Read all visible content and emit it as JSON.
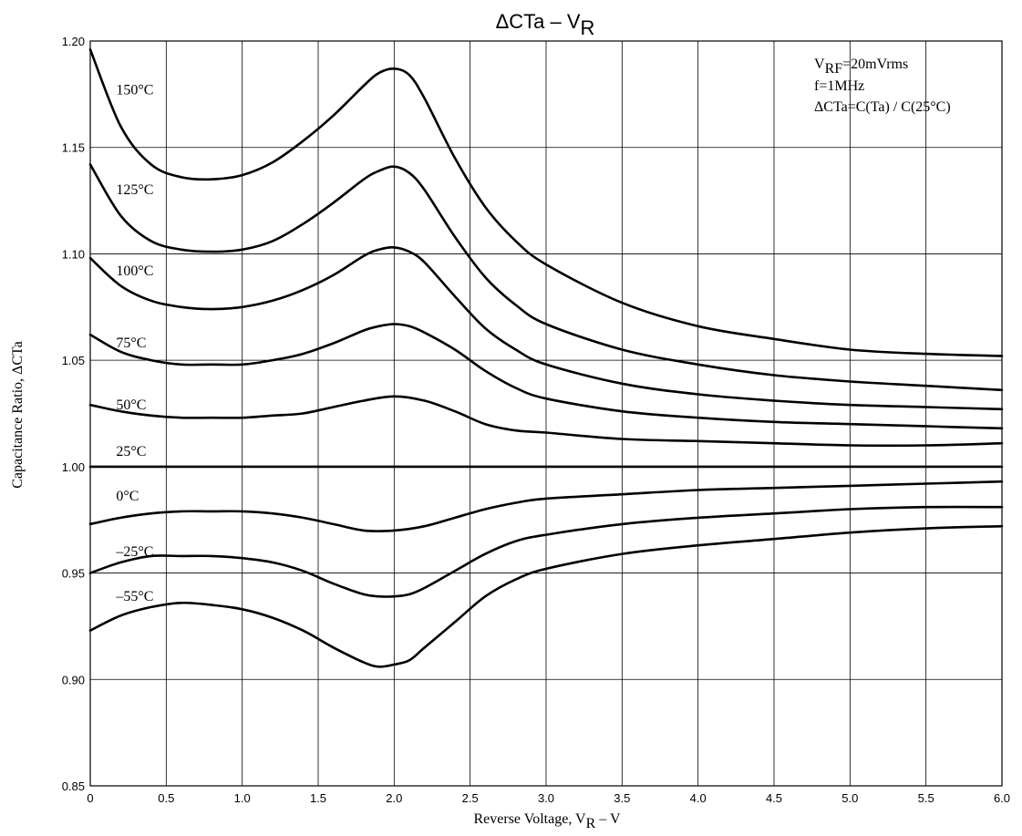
{
  "chart_data": {
    "type": "line",
    "title": {
      "main": "ΔCTa  –  V",
      "sub": "R"
    },
    "xlabel": {
      "main": "Reverse Voltage, V",
      "sub": "R",
      "suffix": "  –  V"
    },
    "ylabel": "Capacitance Ratio, ΔCTa",
    "xlim": [
      0,
      6.0
    ],
    "ylim": [
      0.85,
      1.2
    ],
    "grid": true,
    "x_ticks": [
      "0",
      "0.5",
      "1.0",
      "1.5",
      "2.0",
      "2.5",
      "3.0",
      "3.5",
      "4.0",
      "4.5",
      "5.0",
      "5.5",
      "6.0"
    ],
    "y_ticks": [
      "0.85",
      "0.90",
      "0.95",
      "1.00",
      "1.05",
      "1.10",
      "1.15",
      "1.20"
    ],
    "annotations": [
      {
        "main": "V",
        "sub": "RF",
        "rest": "=20mVrms"
      },
      {
        "main": "f=1MHz"
      },
      {
        "main": "ΔCTa=C(Ta) / C(25°C)"
      }
    ],
    "series": [
      {
        "name": "150°C",
        "points": [
          [
            0,
            1.196
          ],
          [
            0.2,
            1.16
          ],
          [
            0.4,
            1.142
          ],
          [
            0.6,
            1.136
          ],
          [
            0.8,
            1.135
          ],
          [
            1.0,
            1.137
          ],
          [
            1.2,
            1.143
          ],
          [
            1.4,
            1.153
          ],
          [
            1.6,
            1.165
          ],
          [
            1.8,
            1.179
          ],
          [
            1.9,
            1.185
          ],
          [
            2.0,
            1.187
          ],
          [
            2.1,
            1.184
          ],
          [
            2.2,
            1.173
          ],
          [
            2.4,
            1.145
          ],
          [
            2.6,
            1.122
          ],
          [
            2.8,
            1.106
          ],
          [
            3.0,
            1.095
          ],
          [
            3.5,
            1.077
          ],
          [
            4.0,
            1.066
          ],
          [
            4.5,
            1.06
          ],
          [
            5.0,
            1.055
          ],
          [
            5.5,
            1.053
          ],
          [
            6.0,
            1.052
          ]
        ]
      },
      {
        "name": "125°C",
        "points": [
          [
            0,
            1.142
          ],
          [
            0.2,
            1.118
          ],
          [
            0.4,
            1.106
          ],
          [
            0.6,
            1.102
          ],
          [
            0.8,
            1.101
          ],
          [
            1.0,
            1.102
          ],
          [
            1.2,
            1.106
          ],
          [
            1.4,
            1.114
          ],
          [
            1.6,
            1.124
          ],
          [
            1.8,
            1.135
          ],
          [
            1.9,
            1.139
          ],
          [
            2.0,
            1.141
          ],
          [
            2.1,
            1.138
          ],
          [
            2.2,
            1.13
          ],
          [
            2.4,
            1.108
          ],
          [
            2.6,
            1.089
          ],
          [
            2.8,
            1.076
          ],
          [
            3.0,
            1.067
          ],
          [
            3.5,
            1.055
          ],
          [
            4.0,
            1.048
          ],
          [
            4.5,
            1.043
          ],
          [
            5.0,
            1.04
          ],
          [
            5.5,
            1.038
          ],
          [
            6.0,
            1.036
          ]
        ]
      },
      {
        "name": "100°C",
        "points": [
          [
            0,
            1.098
          ],
          [
            0.2,
            1.085
          ],
          [
            0.4,
            1.078
          ],
          [
            0.6,
            1.075
          ],
          [
            0.8,
            1.074
          ],
          [
            1.0,
            1.075
          ],
          [
            1.2,
            1.078
          ],
          [
            1.4,
            1.083
          ],
          [
            1.6,
            1.09
          ],
          [
            1.8,
            1.099
          ],
          [
            1.9,
            1.102
          ],
          [
            2.0,
            1.103
          ],
          [
            2.1,
            1.101
          ],
          [
            2.2,
            1.096
          ],
          [
            2.4,
            1.08
          ],
          [
            2.6,
            1.065
          ],
          [
            2.8,
            1.055
          ],
          [
            3.0,
            1.048
          ],
          [
            3.5,
            1.039
          ],
          [
            4.0,
            1.034
          ],
          [
            4.5,
            1.031
          ],
          [
            5.0,
            1.029
          ],
          [
            5.5,
            1.028
          ],
          [
            6.0,
            1.027
          ]
        ]
      },
      {
        "name": "75°C",
        "points": [
          [
            0,
            1.062
          ],
          [
            0.2,
            1.054
          ],
          [
            0.4,
            1.05
          ],
          [
            0.6,
            1.048
          ],
          [
            0.8,
            1.048
          ],
          [
            1.0,
            1.048
          ],
          [
            1.2,
            1.05
          ],
          [
            1.4,
            1.053
          ],
          [
            1.6,
            1.058
          ],
          [
            1.8,
            1.064
          ],
          [
            1.9,
            1.066
          ],
          [
            2.0,
            1.067
          ],
          [
            2.1,
            1.066
          ],
          [
            2.2,
            1.063
          ],
          [
            2.4,
            1.055
          ],
          [
            2.6,
            1.045
          ],
          [
            2.8,
            1.037
          ],
          [
            3.0,
            1.032
          ],
          [
            3.5,
            1.026
          ],
          [
            4.0,
            1.023
          ],
          [
            4.5,
            1.021
          ],
          [
            5.0,
            1.02
          ],
          [
            5.5,
            1.019
          ],
          [
            6.0,
            1.018
          ]
        ]
      },
      {
        "name": "50°C",
        "points": [
          [
            0,
            1.029
          ],
          [
            0.2,
            1.026
          ],
          [
            0.4,
            1.024
          ],
          [
            0.6,
            1.023
          ],
          [
            0.8,
            1.023
          ],
          [
            1.0,
            1.023
          ],
          [
            1.2,
            1.024
          ],
          [
            1.4,
            1.025
          ],
          [
            1.6,
            1.028
          ],
          [
            1.8,
            1.031
          ],
          [
            2.0,
            1.033
          ],
          [
            2.2,
            1.031
          ],
          [
            2.4,
            1.026
          ],
          [
            2.6,
            1.02
          ],
          [
            2.8,
            1.017
          ],
          [
            3.0,
            1.016
          ],
          [
            3.5,
            1.013
          ],
          [
            4.0,
            1.012
          ],
          [
            4.5,
            1.011
          ],
          [
            5.0,
            1.01
          ],
          [
            5.5,
            1.01
          ],
          [
            6.0,
            1.011
          ]
        ]
      },
      {
        "name": "25°C",
        "points": [
          [
            0,
            1.0
          ],
          [
            6.0,
            1.0
          ]
        ]
      },
      {
        "name": "0°C",
        "points": [
          [
            0,
            0.973
          ],
          [
            0.2,
            0.976
          ],
          [
            0.4,
            0.978
          ],
          [
            0.6,
            0.979
          ],
          [
            0.8,
            0.979
          ],
          [
            1.0,
            0.979
          ],
          [
            1.2,
            0.978
          ],
          [
            1.4,
            0.976
          ],
          [
            1.6,
            0.973
          ],
          [
            1.8,
            0.97
          ],
          [
            2.0,
            0.97
          ],
          [
            2.2,
            0.972
          ],
          [
            2.4,
            0.976
          ],
          [
            2.6,
            0.98
          ],
          [
            2.8,
            0.983
          ],
          [
            3.0,
            0.985
          ],
          [
            3.5,
            0.987
          ],
          [
            4.0,
            0.989
          ],
          [
            4.5,
            0.99
          ],
          [
            5.0,
            0.991
          ],
          [
            5.5,
            0.992
          ],
          [
            6.0,
            0.993
          ]
        ]
      },
      {
        "name": "–25°C",
        "points": [
          [
            0,
            0.95
          ],
          [
            0.2,
            0.955
          ],
          [
            0.4,
            0.958
          ],
          [
            0.6,
            0.958
          ],
          [
            0.8,
            0.958
          ],
          [
            1.0,
            0.957
          ],
          [
            1.2,
            0.955
          ],
          [
            1.4,
            0.951
          ],
          [
            1.6,
            0.945
          ],
          [
            1.8,
            0.94
          ],
          [
            1.9,
            0.939
          ],
          [
            2.0,
            0.939
          ],
          [
            2.1,
            0.94
          ],
          [
            2.2,
            0.943
          ],
          [
            2.4,
            0.951
          ],
          [
            2.6,
            0.959
          ],
          [
            2.8,
            0.965
          ],
          [
            3.0,
            0.968
          ],
          [
            3.5,
            0.973
          ],
          [
            4.0,
            0.976
          ],
          [
            4.5,
            0.978
          ],
          [
            5.0,
            0.98
          ],
          [
            5.5,
            0.981
          ],
          [
            6.0,
            0.981
          ]
        ]
      },
      {
        "name": "–55°C",
        "points": [
          [
            0,
            0.923
          ],
          [
            0.2,
            0.93
          ],
          [
            0.4,
            0.934
          ],
          [
            0.6,
            0.936
          ],
          [
            0.8,
            0.935
          ],
          [
            1.0,
            0.933
          ],
          [
            1.2,
            0.929
          ],
          [
            1.4,
            0.923
          ],
          [
            1.6,
            0.915
          ],
          [
            1.8,
            0.908
          ],
          [
            1.9,
            0.906
          ],
          [
            2.0,
            0.907
          ],
          [
            2.1,
            0.909
          ],
          [
            2.2,
            0.915
          ],
          [
            2.4,
            0.927
          ],
          [
            2.6,
            0.939
          ],
          [
            2.8,
            0.947
          ],
          [
            3.0,
            0.952
          ],
          [
            3.5,
            0.959
          ],
          [
            4.0,
            0.963
          ],
          [
            4.5,
            0.966
          ],
          [
            5.0,
            0.969
          ],
          [
            5.5,
            0.971
          ],
          [
            6.0,
            0.972
          ]
        ]
      }
    ]
  }
}
